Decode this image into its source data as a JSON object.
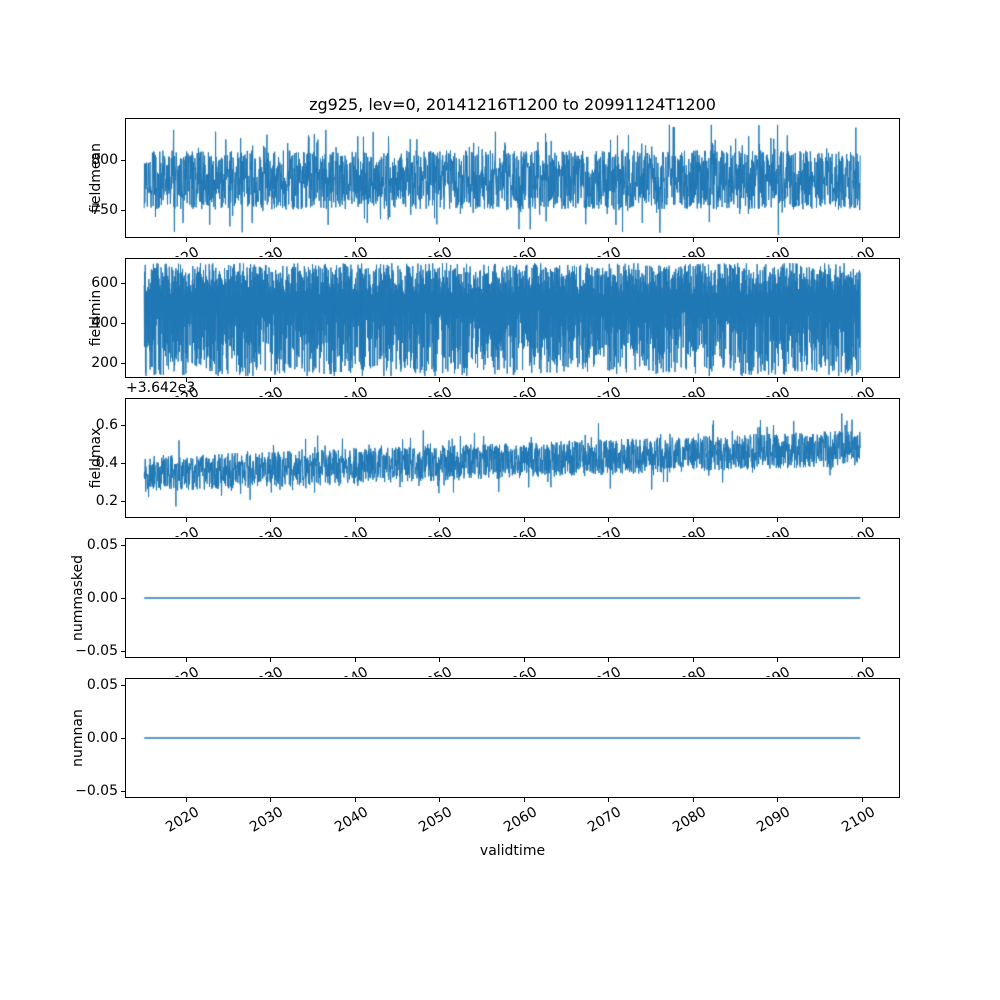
{
  "title": "zg925, lev=0, 20141216T1200 to 20991124T1200",
  "style": {
    "line_color": "#1f77b4",
    "text_color": "#000000",
    "background": "#ffffff"
  },
  "n_points": 2800,
  "x_axis": {
    "label": "validtime",
    "xlim": [
      2012.8,
      2104.5
    ],
    "data_range": [
      2014.96,
      2099.9
    ],
    "ticks": [
      {
        "value": 2020,
        "label": "2020"
      },
      {
        "value": 2030,
        "label": "2030"
      },
      {
        "value": 2040,
        "label": "2040"
      },
      {
        "value": 2050,
        "label": "2050"
      },
      {
        "value": 2060,
        "label": "2060"
      },
      {
        "value": 2070,
        "label": "2070"
      },
      {
        "value": 2080,
        "label": "2080"
      },
      {
        "value": 2090,
        "label": "2090"
      },
      {
        "value": 2100,
        "label": "2100"
      }
    ]
  },
  "chart_data": [
    {
      "type": "line",
      "name": "fieldmean",
      "ylabel": "fieldmean",
      "ylim": [
        722,
        842
      ],
      "yticks": [
        {
          "value": 750,
          "label": "750"
        },
        {
          "value": 800,
          "label": "800"
        }
      ],
      "summary": {
        "approx_mean": 780,
        "approx_min": 725,
        "approx_max": 836
      },
      "render": {
        "mode": "noise",
        "base": 780,
        "trend": 0,
        "amp": 30,
        "spike_prob": 0.15,
        "spike_amp": 32,
        "clamp": [
          724,
          836
        ]
      }
    },
    {
      "type": "line",
      "name": "fieldmin",
      "ylabel": "fieldmin",
      "ylim": [
        125,
        725
      ],
      "yticks": [
        {
          "value": 200,
          "label": "200"
        },
        {
          "value": 400,
          "label": "400"
        },
        {
          "value": 600,
          "label": "600"
        }
      ],
      "summary": {
        "approx_high_band": [
          540,
          710
        ],
        "approx_low_band": [
          135,
          465
        ],
        "approx_min": 130
      },
      "render": {
        "mode": "comb",
        "high_base": 620,
        "high_amp": 85,
        "low_base": 300,
        "low_amp": 165,
        "deep_spike": 150,
        "deep_prob": 0.06,
        "clamp": [
          130,
          721
        ]
      }
    },
    {
      "type": "line",
      "name": "fieldmax",
      "ylabel": "fieldmax",
      "offset_text": "+3.642e3",
      "ylim": [
        0.11,
        0.742
      ],
      "yticks": [
        {
          "value": 0.2,
          "label": "0.2"
        },
        {
          "value": 0.4,
          "label": "0.4"
        },
        {
          "value": 0.6,
          "label": "0.6"
        }
      ],
      "summary": {
        "approx_start_mean": 0.34,
        "approx_end_mean": 0.48,
        "approx_min": 0.12,
        "approx_max": 0.72
      },
      "render": {
        "mode": "noise",
        "base": 0.34,
        "trend": 0.14,
        "amp": 0.095,
        "spike_prob": 0.12,
        "spike_amp": 0.1,
        "clamp": [
          0.115,
          0.73
        ]
      }
    },
    {
      "type": "line",
      "name": "nummasked",
      "ylabel": "nummasked",
      "ylim": [
        -0.0567,
        0.0567
      ],
      "yticks": [
        {
          "value": -0.05,
          "label": "−0.05"
        },
        {
          "value": 0,
          "label": "0.00"
        },
        {
          "value": 0.05,
          "label": "0.05"
        }
      ],
      "summary": {
        "constant_value": 0
      },
      "render": {
        "mode": "flat",
        "value": 0
      }
    },
    {
      "type": "line",
      "name": "numnan",
      "ylabel": "numnan",
      "ylim": [
        -0.0567,
        0.0567
      ],
      "yticks": [
        {
          "value": -0.05,
          "label": "−0.05"
        },
        {
          "value": 0,
          "label": "0.00"
        },
        {
          "value": 0.05,
          "label": "0.05"
        }
      ],
      "summary": {
        "constant_value": 0
      },
      "render": {
        "mode": "flat",
        "value": 0
      }
    }
  ]
}
